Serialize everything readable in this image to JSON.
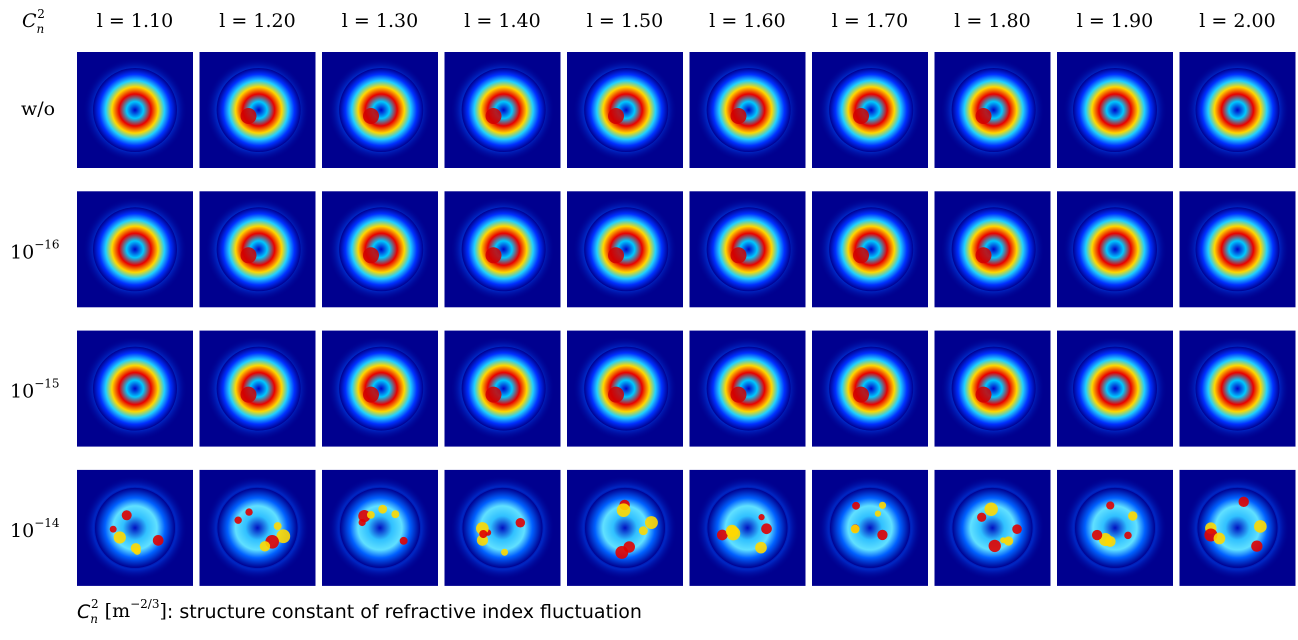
{
  "corner": {
    "symbol": "C",
    "subscript": "n",
    "superscript": "2"
  },
  "columns": [
    "l = 1.10",
    "l = 1.20",
    "l = 1.30",
    "l = 1.40",
    "l = 1.50",
    "l = 1.60",
    "l = 1.70",
    "l = 1.80",
    "l = 1.90",
    "l = 2.00"
  ],
  "rows": [
    {
      "label": "w/o"
    },
    {
      "base": "10",
      "exponent": "−16"
    },
    {
      "base": "10",
      "exponent": "−15"
    },
    {
      "base": "10",
      "exponent": "−14"
    }
  ],
  "caption": {
    "symbol": "C",
    "subscript": "n",
    "superscript": "2",
    "unit_open": "[m",
    "unit_exponent": "−2/3",
    "unit_close": "]",
    "text": ": structure constant of refractive index fluctuation"
  }
}
